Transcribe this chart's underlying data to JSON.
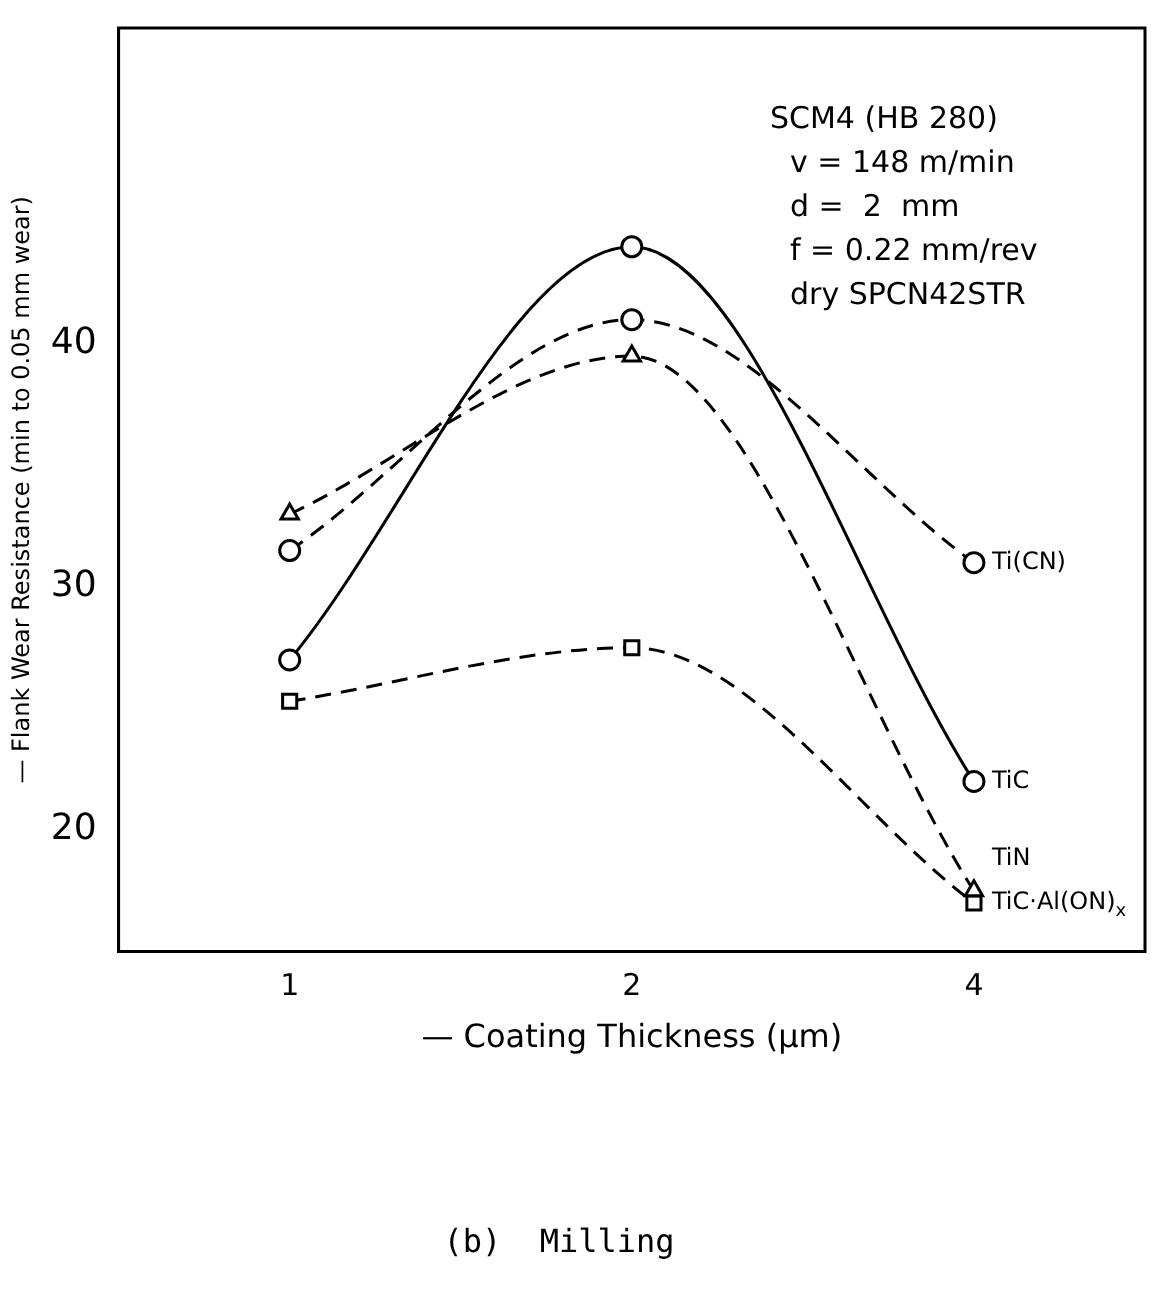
{
  "chart_data": {
    "type": "line",
    "xlabel": "— Coating Thickness (μm)",
    "ylabel": "— Flank Wear Resistance (min to 0.05 mm wear)",
    "categories": [
      "1",
      "2",
      "4"
    ],
    "ylim": [
      15,
      53
    ],
    "yticks": [
      20,
      30,
      40
    ],
    "grid": false,
    "legend": false,
    "series": [
      {
        "name": "TiC",
        "color": "#000000",
        "values": [
          27,
          44,
          22
        ],
        "marker": "circle",
        "line_style": "solid"
      },
      {
        "name": "Ti(CN)",
        "color": "#000000",
        "values": [
          31.5,
          41,
          31
        ],
        "marker": "circle",
        "line_style": "dashed"
      },
      {
        "name": "TiN",
        "color": "#000000",
        "values": [
          33,
          39.5,
          17.5
        ],
        "marker": "triangle",
        "line_style": "dashed"
      },
      {
        "name": "TiC·Al(ON)$_{x}$",
        "color": "#000000",
        "values": [
          25.3,
          27.5,
          17
        ],
        "marker": "square",
        "line_style": "dashed"
      }
    ],
    "annotations": [
      "SCM4 (HB 280)",
      "v = 148 m/min",
      "d =  2  mm",
      "f = 0.22 mm/rev",
      "dry SPCN42STR",
      "(b)  Milling"
    ]
  }
}
